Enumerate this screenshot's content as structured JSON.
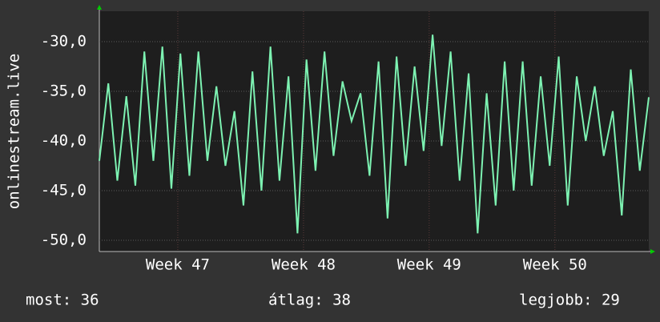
{
  "chart_data": {
    "type": "line",
    "y_label": "onlinestream.live",
    "series": [
      {
        "name": "onlinestream.live",
        "color": "#7df2b2",
        "values": [
          -42,
          -34.2,
          -44,
          -35.5,
          -44.5,
          -31,
          -42,
          -30.5,
          -44.8,
          -31.2,
          -43.5,
          -31,
          -42,
          -34.5,
          -42.5,
          -37,
          -46.5,
          -33,
          -45,
          -30.5,
          -44,
          -33.5,
          -49.3,
          -31.8,
          -43,
          -31,
          -41.5,
          -34,
          -38,
          -35.2,
          -43.5,
          -32,
          -47.8,
          -31.5,
          -42.5,
          -32.5,
          -41,
          -29.3,
          -40.5,
          -31,
          -44,
          -33.2,
          -49.3,
          -35.2,
          -46.5,
          -32,
          -45,
          -32,
          -44.5,
          -33.5,
          -42.5,
          -31.5,
          -46.5,
          -33.5,
          -40,
          -34.5,
          -41.5,
          -37,
          -47.5,
          -32.8,
          -43,
          -35.6
        ]
      }
    ],
    "xlim": [
      0,
      61
    ],
    "xticks": [
      {
        "value": 8.71,
        "label": "Week 47"
      },
      {
        "value": 22.67,
        "label": "Week 48"
      },
      {
        "value": 36.62,
        "label": "Week 49"
      },
      {
        "value": 50.58,
        "label": "Week 50"
      }
    ],
    "ylim": [
      -51.13,
      -26.94
    ],
    "yticks": [
      {
        "value": -30,
        "label": "-30,0"
      },
      {
        "value": -35,
        "label": "-35,0"
      },
      {
        "value": -40,
        "label": "-40,0"
      },
      {
        "value": -45,
        "label": "-45,0"
      },
      {
        "value": -50,
        "label": "-50,0"
      }
    ],
    "grid": true,
    "footer": [
      "most: 36",
      "átlag: 38",
      "legjobb: 29"
    ]
  }
}
